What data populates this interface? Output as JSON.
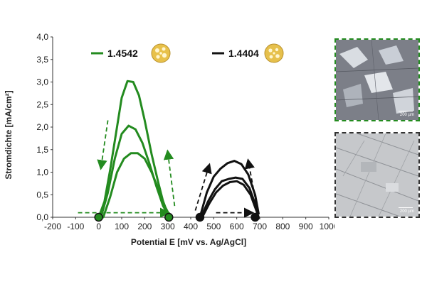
{
  "chart_data": {
    "type": "line",
    "xlabel": "Potential E [mV vs. Ag/AgCl]",
    "ylabel": "Stromdichte [mA/cm²]",
    "xlim": [
      -200,
      1000
    ],
    "ylim": [
      0,
      4.0
    ],
    "xticks": [
      "-200",
      "-100",
      "0",
      "100",
      "200",
      "300",
      "400",
      "500",
      "600",
      "700",
      "800",
      "900",
      "1000"
    ],
    "yticks": [
      "0,0",
      "0,5",
      "1,0",
      "1,5",
      "2,0",
      "2,5",
      "3,0",
      "3,5",
      "4,0"
    ],
    "series": [
      {
        "name": "1.4542",
        "color": "#238b1f",
        "curves": [
          {
            "x": [
              0,
              25,
              50,
              75,
              100,
              125,
              150,
              175,
              200,
              230,
              260,
              285,
              305
            ],
            "y": [
              0.0,
              0.35,
              1.05,
              1.85,
              2.65,
              3.02,
              3.0,
              2.7,
              2.15,
              1.4,
              0.75,
              0.25,
              0.02
            ]
          },
          {
            "x": [
              10,
              40,
              70,
              100,
              130,
              160,
              190,
              220,
              250,
              280,
              305
            ],
            "y": [
              0.0,
              0.55,
              1.3,
              1.85,
              2.03,
              1.95,
              1.65,
              1.2,
              0.7,
              0.25,
              0.03
            ]
          },
          {
            "x": [
              20,
              50,
              80,
              110,
              140,
              170,
              200,
              230,
              260,
              290,
              310
            ],
            "y": [
              0.0,
              0.45,
              1.0,
              1.3,
              1.42,
              1.42,
              1.3,
              1.0,
              0.62,
              0.22,
              0.02
            ]
          }
        ]
      },
      {
        "name": "1.4404",
        "color": "#111111",
        "curves": [
          {
            "x": [
              440,
              470,
              500,
              530,
              560,
              590,
              620,
              650,
              680,
              695
            ],
            "y": [
              0.0,
              0.55,
              0.9,
              1.08,
              1.2,
              1.25,
              1.18,
              0.95,
              0.5,
              0.08
            ]
          },
          {
            "x": [
              445,
              475,
              505,
              535,
              565,
              595,
              625,
              655,
              680,
              690
            ],
            "y": [
              0.0,
              0.35,
              0.62,
              0.8,
              0.85,
              0.88,
              0.85,
              0.65,
              0.3,
              0.05
            ]
          },
          {
            "x": [
              450,
              480,
              510,
              540,
              570,
              600,
              630,
              660,
              685
            ],
            "y": [
              0.0,
              0.3,
              0.55,
              0.7,
              0.78,
              0.8,
              0.72,
              0.5,
              0.15
            ]
          }
        ]
      }
    ],
    "markers": [
      {
        "x": 0,
        "y": 0,
        "color": "#238b1f"
      },
      {
        "x": 305,
        "y": 0,
        "color": "#238b1f"
      },
      {
        "x": 440,
        "y": 0,
        "color": "#111111"
      },
      {
        "x": 680,
        "y": 0,
        "color": "#111111"
      }
    ],
    "arrows": [
      {
        "color": "#238b1f",
        "from": [
          -90,
          0.1
        ],
        "to": [
          300,
          0.1
        ]
      },
      {
        "color": "#238b1f",
        "from": [
          40,
          2.15
        ],
        "to": [
          10,
          1.1
        ]
      },
      {
        "color": "#238b1f",
        "from": [
          330,
          0.25
        ],
        "to": [
          300,
          1.45
        ]
      },
      {
        "color": "#111111",
        "from": [
          510,
          0.1
        ],
        "to": [
          665,
          0.1
        ]
      },
      {
        "color": "#111111",
        "from": [
          420,
          0.15
        ],
        "to": [
          480,
          1.15
        ]
      },
      {
        "color": "#111111",
        "from": [
          690,
          0.15
        ],
        "to": [
          650,
          1.25
        ]
      }
    ]
  },
  "legend": [
    {
      "label": "1.4542",
      "color": "#238b1f"
    },
    {
      "label": "1.4404",
      "color": "#111111"
    }
  ],
  "micrographs": [
    {
      "name": "micrograph-1.4542",
      "border_color": "#238b1f",
      "scale_label": "200 µm"
    },
    {
      "name": "micrograph-1.4404",
      "border_color": "#333333",
      "scale_label": "200 µm"
    }
  ]
}
